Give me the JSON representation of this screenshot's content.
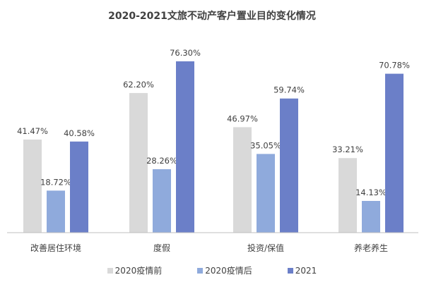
{
  "chart_data": {
    "type": "bar",
    "title": "2020-2021文旅不动产客户置业目的变化情况",
    "categories": [
      "改善居住环境",
      "度假",
      "投资/保值",
      "养老养生"
    ],
    "series": [
      {
        "name": "2020疫情前",
        "values": [
          41.47,
          62.2,
          46.97,
          33.21
        ],
        "labels": [
          "41.47%",
          "62.20%",
          "46.97%",
          "33.21%"
        ],
        "color": "#d9d9d9"
      },
      {
        "name": "2020疫情后",
        "values": [
          18.72,
          28.26,
          35.05,
          14.13
        ],
        "labels": [
          "18.72%",
          "28.26%",
          "35.05%",
          "14.13%"
        ],
        "color": "#8faadc"
      },
      {
        "name": "2021",
        "values": [
          40.58,
          76.3,
          59.74,
          70.78
        ],
        "labels": [
          "40.58%",
          "76.30%",
          "59.74%",
          "70.78%"
        ],
        "color": "#6b7fc8"
      }
    ],
    "ylim": [
      0,
      80
    ],
    "grid": false,
    "legend": "bottom",
    "xlabel": "",
    "ylabel": ""
  }
}
